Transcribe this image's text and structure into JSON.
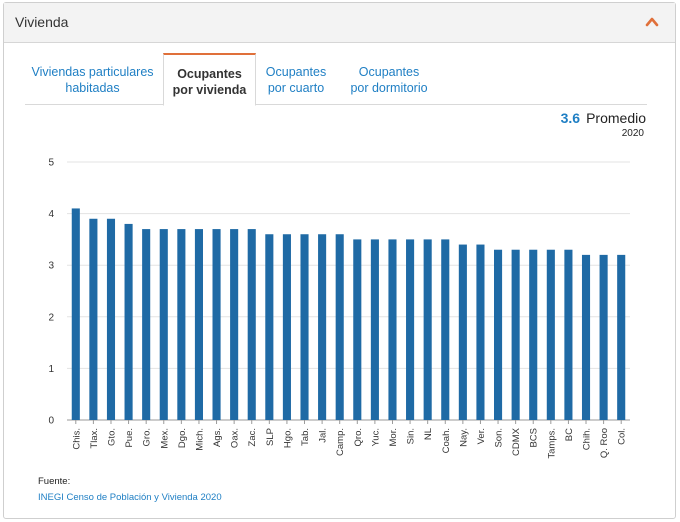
{
  "panel": {
    "title": "Vivienda"
  },
  "tabs": [
    {
      "line1": "Viviendas particulares",
      "line2": "habitadas",
      "active": false
    },
    {
      "line1": "Ocupantes",
      "line2": "por vivienda",
      "active": true
    },
    {
      "line1": "Ocupantes",
      "line2": "por cuarto",
      "active": false
    },
    {
      "line1": "Ocupantes",
      "line2": "por dormitorio",
      "active": false
    }
  ],
  "summary": {
    "value": "3.6",
    "label": "Promedio",
    "year": "2020"
  },
  "colors": {
    "accent": "#e0703a",
    "link": "#1f7fc4",
    "bar": "#1f6aa5"
  },
  "chart_data": {
    "type": "bar",
    "title": "",
    "xlabel": "",
    "ylabel": "",
    "ylim": [
      0,
      5
    ],
    "yticks": [
      "0",
      "1",
      "2",
      "3",
      "4",
      "5"
    ],
    "grid": true,
    "categories": [
      "Chis.",
      "Tlax.",
      "Gto.",
      "Pue.",
      "Gro.",
      "Mex.",
      "Dgo.",
      "Mich.",
      "Ags.",
      "Oax.",
      "Zac.",
      "SLP",
      "Hgo.",
      "Tab.",
      "Jal.",
      "Camp.",
      "Qro.",
      "Yuc.",
      "Mor.",
      "Sin.",
      "NL",
      "Coah.",
      "Nay.",
      "Ver.",
      "Son.",
      "CDMX",
      "BCS",
      "Tamps.",
      "BC",
      "Chih.",
      "Q. Roo",
      "Col."
    ],
    "values": [
      4.1,
      3.9,
      3.9,
      3.8,
      3.7,
      3.7,
      3.7,
      3.7,
      3.7,
      3.7,
      3.7,
      3.6,
      3.6,
      3.6,
      3.6,
      3.6,
      3.5,
      3.5,
      3.5,
      3.5,
      3.5,
      3.5,
      3.4,
      3.4,
      3.3,
      3.3,
      3.3,
      3.3,
      3.3,
      3.2,
      3.2,
      3.2
    ]
  },
  "footer": {
    "source_label": "Fuente:",
    "source_link": "INEGI Censo de Población y Vivienda 2020"
  }
}
